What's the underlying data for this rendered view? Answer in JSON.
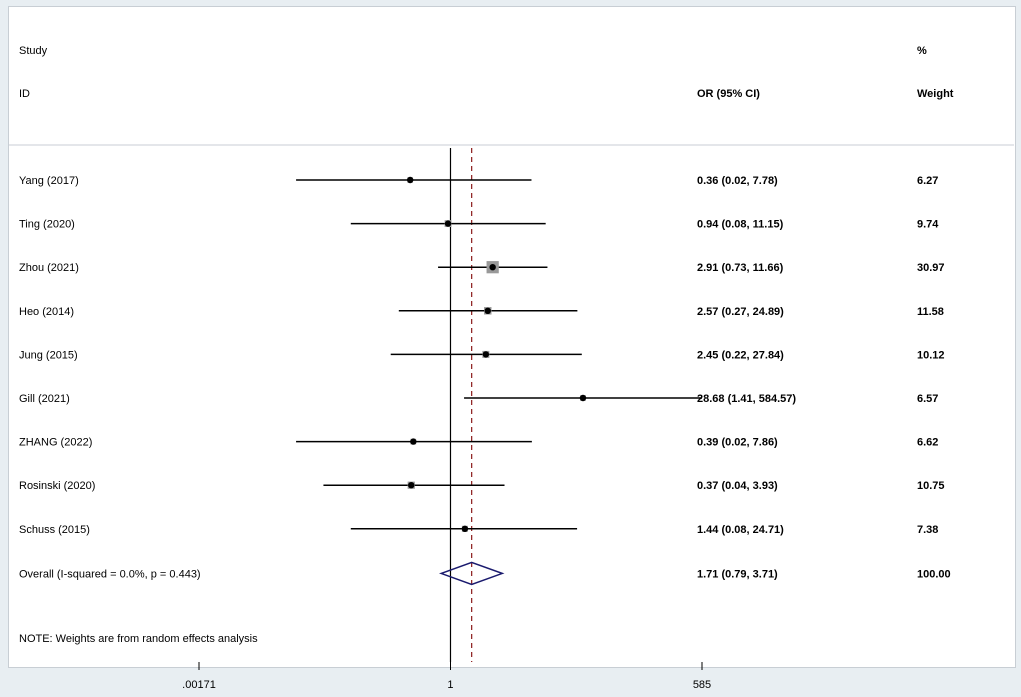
{
  "header": {
    "study_label": "Study",
    "id_label": "ID",
    "or_label": "OR (95% CI)",
    "pct_label": "%",
    "weight_label": "Weight"
  },
  "note": "NOTE: Weights are from random effects analysis",
  "colors": {
    "line": "#000000",
    "null_line": "#000000",
    "overall_dash": "#8b1a1a",
    "marker_box": "#999999",
    "diamond": "#1a1a6e"
  },
  "chart_data": {
    "type": "forest",
    "scale": "log",
    "xticks": [
      {
        "value": 0.00171,
        "label": ".00171"
      },
      {
        "value": 1,
        "label": "1"
      },
      {
        "value": 585,
        "label": "585"
      }
    ],
    "xlim": [
      0.00171,
      585
    ],
    "null_value": 1,
    "studies": [
      {
        "id": "Yang (2017)",
        "or": 0.36,
        "lo": 0.02,
        "hi": 7.78,
        "ci_text": "0.36 (0.02, 7.78)",
        "weight": 6.27,
        "weight_text": "6.27"
      },
      {
        "id": "Ting (2020)",
        "or": 0.94,
        "lo": 0.08,
        "hi": 11.15,
        "ci_text": "0.94 (0.08, 11.15)",
        "weight": 9.74,
        "weight_text": "9.74"
      },
      {
        "id": "Zhou (2021)",
        "or": 2.91,
        "lo": 0.73,
        "hi": 11.66,
        "ci_text": "2.91 (0.73, 11.66)",
        "weight": 30.97,
        "weight_text": "30.97"
      },
      {
        "id": "Heo (2014)",
        "or": 2.57,
        "lo": 0.27,
        "hi": 24.89,
        "ci_text": "2.57 (0.27, 24.89)",
        "weight": 11.58,
        "weight_text": "11.58"
      },
      {
        "id": "Jung (2015)",
        "or": 2.45,
        "lo": 0.22,
        "hi": 27.84,
        "ci_text": "2.45 (0.22, 27.84)",
        "weight": 10.12,
        "weight_text": "10.12"
      },
      {
        "id": "Gill (2021)",
        "or": 28.68,
        "lo": 1.41,
        "hi": 584.57,
        "ci_text": "28.68 (1.41, 584.57)",
        "weight": 6.57,
        "weight_text": "6.57"
      },
      {
        "id": "ZHANG (2022)",
        "or": 0.39,
        "lo": 0.02,
        "hi": 7.86,
        "ci_text": "0.39 (0.02, 7.86)",
        "weight": 6.62,
        "weight_text": "6.62"
      },
      {
        "id": "Rosinski (2020)",
        "or": 0.37,
        "lo": 0.04,
        "hi": 3.93,
        "ci_text": "0.37 (0.04, 3.93)",
        "weight": 10.75,
        "weight_text": "10.75"
      },
      {
        "id": "Schuss (2015)",
        "or": 1.44,
        "lo": 0.08,
        "hi": 24.71,
        "ci_text": "1.44 (0.08, 24.71)",
        "weight": 7.38,
        "weight_text": "7.38"
      }
    ],
    "overall": {
      "id": "Overall  (I-squared = 0.0%, p = 0.443)",
      "or": 1.71,
      "lo": 0.79,
      "hi": 3.71,
      "ci_text": "1.71 (0.79, 3.71)",
      "weight": 100.0,
      "weight_text": "100.00"
    }
  }
}
